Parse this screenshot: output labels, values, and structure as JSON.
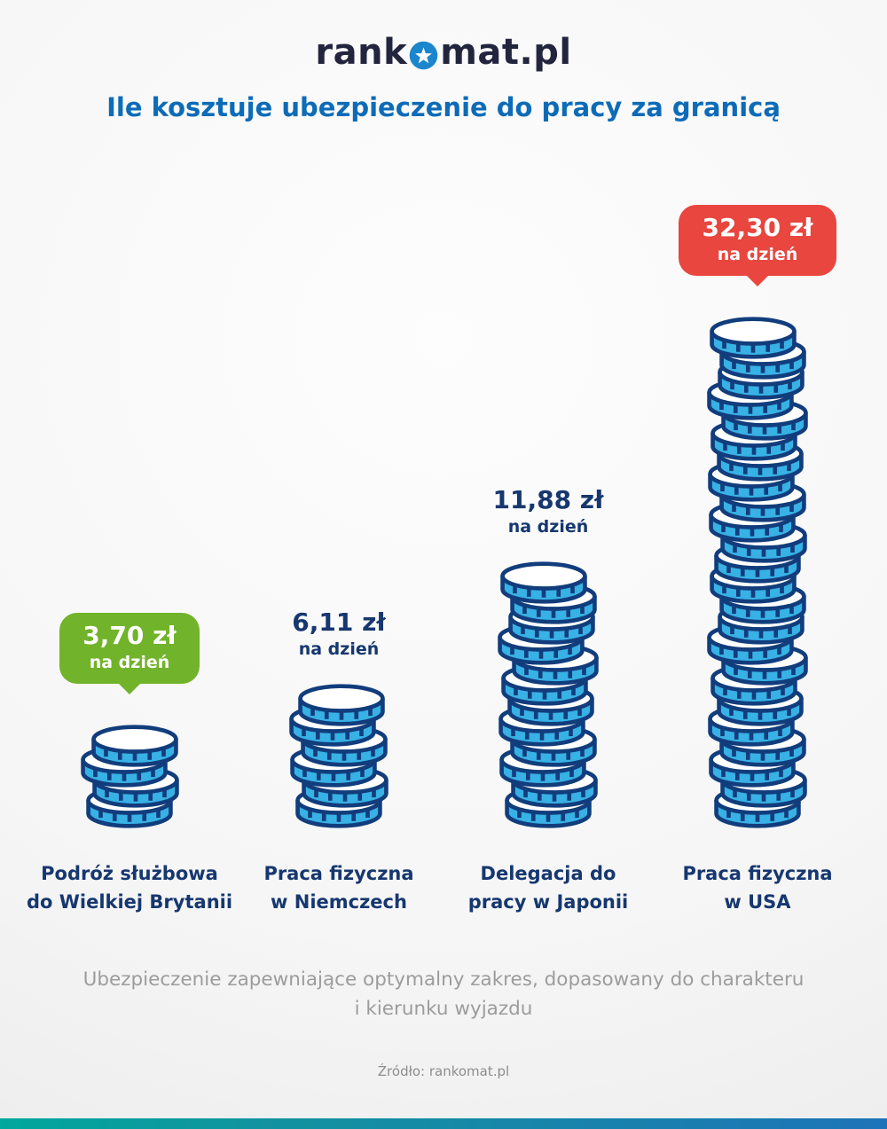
{
  "logo": {
    "pre": "rank",
    "post": "mat.pl"
  },
  "title": "Ile kosztuje ubezpieczenie do pracy za granicą",
  "chart_data": {
    "type": "bar",
    "representation": "coin-stacks",
    "title": "Ile kosztuje ubezpieczenie do pracy za granicą",
    "categories": [
      "Podróż służbowa do Wielkiej Brytanii",
      "Praca fizyczna w Niemczech",
      "Delegacja do pracy w Japonii",
      "Praca fizyczna w USA"
    ],
    "values": [
      3.7,
      6.11,
      11.88,
      32.3
    ],
    "unit": "zł na dzień",
    "value_labels": [
      "3,70 zł na dzień",
      "6,11 zł na dzień",
      "11,88 zł na dzień",
      "32,30 zł na dzień"
    ],
    "coin_counts": [
      4,
      6,
      12,
      24
    ],
    "highlight": {
      "min": {
        "index": 0,
        "style": "green-badge"
      },
      "max": {
        "index": 3,
        "style": "red-badge"
      }
    },
    "legend": "none",
    "grid": false
  },
  "columns": [
    {
      "value": "3,70 zł",
      "sub": "na dzień",
      "badge": "green",
      "coins": 4,
      "label_lines": [
        "Podróż służbowa",
        "do Wielkiej Brytanii"
      ]
    },
    {
      "value": "6,11 zł",
      "sub": "na dzień",
      "badge": "none",
      "coins": 6,
      "label_lines": [
        "Praca fizyczna",
        "w Niemczech"
      ]
    },
    {
      "value": "11,88 zł",
      "sub": "na dzień",
      "badge": "none",
      "coins": 12,
      "label_lines": [
        "Delegacja do",
        "pracy w Japonii"
      ]
    },
    {
      "value": "32,30 zł",
      "sub": "na dzień",
      "badge": "red",
      "coins": 24,
      "label_lines": [
        "Praca fizyczna",
        "w USA"
      ]
    }
  ],
  "footer": {
    "description_line1": "Ubezpieczenie zapewniające optymalny zakres, dopasowany do charakteru",
    "description_line2": "i kierunku wyjazdu",
    "source": "Źródło: rankomat.pl"
  },
  "colors": {
    "title_blue": "#0d6bb7",
    "navy_text": "#16376f",
    "logo_dark": "#23253e",
    "logo_circle_blue": "#1c86cc",
    "coin_face": "#38b1e5",
    "coin_top": "#ffffff",
    "coin_outline": "#123d7c",
    "badges": {
      "green": "#71b32a",
      "red": "#e8463f"
    },
    "gradient_left": "#00a79c",
    "gradient_right": "#1e73b8",
    "gray_text": "#9c9c9c"
  }
}
